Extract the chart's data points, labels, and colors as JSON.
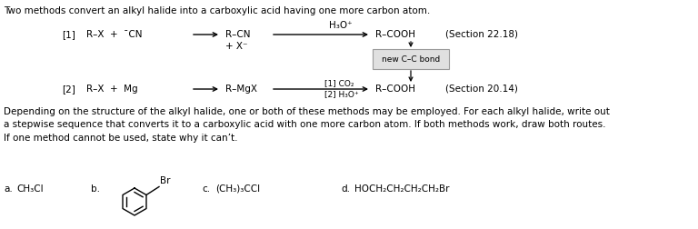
{
  "title_text": "Two methods convert an alkyl halide into a carboxylic acid having one more carbon atom.",
  "bg_color": "#ffffff",
  "text_color": "#000000",
  "figsize": [
    7.68,
    2.52
  ],
  "dpi": 100,
  "paragraph_text": "Depending on the structure of the alkyl halide, one or both of these methods may be employed. For each alkyl halide, write out\na stepwise sequence that converts it to a carboxylic acid with one more carbon atom. If both methods work, draw both routes.\nIf one method cannot be used, state why it can’t.",
  "row1_label": "[1]",
  "row1_rxn1": "R–X  +  ¯CN",
  "row1_rxn2": "R–CN",
  "row1_above_arrow2": "H₃O⁺",
  "row1_rxn3": "R–COOH",
  "row1_section": "(Section 22.18)",
  "row1_below_rxn1": "+ X⁻",
  "row2_label": "[2]",
  "row2_rxn1": "R–X  +  Mg",
  "row2_rxn2": "R–MgX",
  "row2_above_arrow2": "[1] CO₂",
  "row2_below_arrow2": "[2] H₃O⁺",
  "row2_rxn3": "R–COOH",
  "row2_section": "(Section 20.14)",
  "box_label": "new C–C bond",
  "sub_a_label": "a.",
  "sub_a_chem": "CH₃Cl",
  "sub_b_label": "b.",
  "sub_c_label": "c.",
  "sub_c_chem": "(CH₃)₃CCl",
  "sub_d_label": "d.",
  "sub_d_chem": "HOCH₂CH₂CH₂CH₂Br",
  "br_label": "Br",
  "fs_main": 7.5,
  "fs_chem": 7.5,
  "fs_small": 6.5
}
